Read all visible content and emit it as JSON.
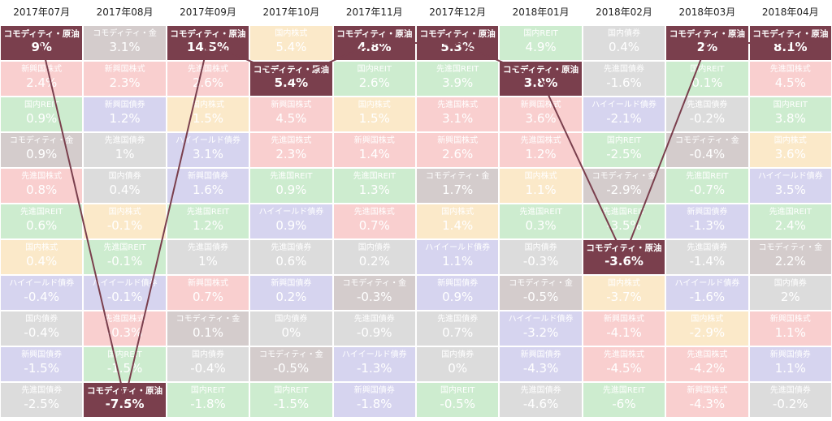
{
  "chart_data": {
    "type": "table",
    "months": [
      "2017年07月",
      "2017年08月",
      "2017年09月",
      "2017年10月",
      "2017年11月",
      "2017年12月",
      "2018年01月",
      "2018年02月",
      "2018年03月",
      "2018年04月"
    ],
    "highlight": "コモディティ・原油",
    "highlight_color": "#7a3f4d",
    "asset_colors": {
      "コモディティ・原油": "#7a3f4d",
      "コモディティ・金": "#d4cccc",
      "国内株式": "#fbe9c9",
      "国内REIT": "#cdeccf",
      "国内債券": "#dcdcdc",
      "新興国株式": "#f9cfcf",
      "先進国株式": "#f9cfcf",
      "先進国REIT": "#cdeccf",
      "ハイイールド債券": "#d6d4ef",
      "新興国債券": "#d6d4ef",
      "先進国債券": "#dcdcdc"
    },
    "columns": [
      [
        {
          "name": "コモディティ・原油",
          "value": "9%"
        },
        {
          "name": "新興国株式",
          "value": "2.4%"
        },
        {
          "name": "国内REIT",
          "value": "0.9%"
        },
        {
          "name": "コモディティ・金",
          "value": "0.9%"
        },
        {
          "name": "先進国株式",
          "value": "0.8%"
        },
        {
          "name": "先進国REIT",
          "value": "0.6%"
        },
        {
          "name": "国内株式",
          "value": "0.4%"
        },
        {
          "name": "ハイイールド債券",
          "value": "-0.4%"
        },
        {
          "name": "国内債券",
          "value": "-0.4%"
        },
        {
          "name": "新興国債券",
          "value": "-1.5%"
        },
        {
          "name": "先進国債券",
          "value": "-2.5%"
        }
      ],
      [
        {
          "name": "コモディティ・金",
          "value": "3.1%"
        },
        {
          "name": "新興国株式",
          "value": "2.3%"
        },
        {
          "name": "新興国債券",
          "value": "1.2%"
        },
        {
          "name": "先進国債券",
          "value": "1%"
        },
        {
          "name": "国内債券",
          "value": "0.4%"
        },
        {
          "name": "国内株式",
          "value": "-0.1%"
        },
        {
          "name": "先進国REIT",
          "value": "-0.1%"
        },
        {
          "name": "ハイイールド債券",
          "value": "-0.1%"
        },
        {
          "name": "先進国株式",
          "value": "-0.3%"
        },
        {
          "name": "国内REIT",
          "value": "-1.5%"
        },
        {
          "name": "コモディティ・原油",
          "value": "-7.5%"
        }
      ],
      [
        {
          "name": "コモディティ・原油",
          "value": "14.5%"
        },
        {
          "name": "先進国株式",
          "value": "2.6%"
        },
        {
          "name": "国内株式",
          "value": "1.5%"
        },
        {
          "name": "ハイイールド債券",
          "value": "3.1%"
        },
        {
          "name": "新興国債券",
          "value": "1.6%"
        },
        {
          "name": "先進国REIT",
          "value": "1.2%"
        },
        {
          "name": "先進国債券",
          "value": "1%"
        },
        {
          "name": "新興国株式",
          "value": "0.7%"
        },
        {
          "name": "コモディティ・金",
          "value": "0.1%"
        },
        {
          "name": "国内債券",
          "value": "-0.4%"
        },
        {
          "name": "国内REIT",
          "value": "-1.8%"
        }
      ],
      [
        {
          "name": "国内株式",
          "value": "5.4%"
        },
        {
          "name": "コモディティ・原油",
          "value": "5.4%"
        },
        {
          "name": "新興国株式",
          "value": "4.5%"
        },
        {
          "name": "先進国株式",
          "value": "2.3%"
        },
        {
          "name": "先進国REIT",
          "value": "0.9%"
        },
        {
          "name": "ハイイールド債券",
          "value": "0.9%"
        },
        {
          "name": "先進国債券",
          "value": "0.6%"
        },
        {
          "name": "新興国債券",
          "value": "0.2%"
        },
        {
          "name": "国内債券",
          "value": "0%"
        },
        {
          "name": "コモディティ・金",
          "value": "-0.5%"
        },
        {
          "name": "国内REIT",
          "value": "-1.5%"
        }
      ],
      [
        {
          "name": "コモディティ・原油",
          "value": "4.8%"
        },
        {
          "name": "国内REIT",
          "value": "2.6%"
        },
        {
          "name": "国内株式",
          "value": "1.5%"
        },
        {
          "name": "新興国株式",
          "value": "1.4%"
        },
        {
          "name": "先進国REIT",
          "value": "1.3%"
        },
        {
          "name": "先進国株式",
          "value": "0.7%"
        },
        {
          "name": "国内債券",
          "value": "0.2%"
        },
        {
          "name": "コモディティ・金",
          "value": "-0.3%"
        },
        {
          "name": "先進国債券",
          "value": "-0.9%"
        },
        {
          "name": "ハイイールド債券",
          "value": "-1.3%"
        },
        {
          "name": "新興国債券",
          "value": "-1.8%"
        }
      ],
      [
        {
          "name": "コモディティ・原油",
          "value": "5.3%"
        },
        {
          "name": "先進国REIT",
          "value": "3.9%"
        },
        {
          "name": "先進国株式",
          "value": "3.1%"
        },
        {
          "name": "新興国株式",
          "value": "2.6%"
        },
        {
          "name": "コモディティ・金",
          "value": "1.7%"
        },
        {
          "name": "国内株式",
          "value": "1.4%"
        },
        {
          "name": "ハイイールド債券",
          "value": "1.1%"
        },
        {
          "name": "新興国債券",
          "value": "0.9%"
        },
        {
          "name": "先進国債券",
          "value": "0.7%"
        },
        {
          "name": "国内債券",
          "value": "0%"
        },
        {
          "name": "国内REIT",
          "value": "-0.5%"
        }
      ],
      [
        {
          "name": "国内REIT",
          "value": "4.9%"
        },
        {
          "name": "コモディティ・原油",
          "value": "3.8%"
        },
        {
          "name": "新興国株式",
          "value": "3.6%"
        },
        {
          "name": "先進国株式",
          "value": "1.2%"
        },
        {
          "name": "国内株式",
          "value": "1.1%"
        },
        {
          "name": "先進国REIT",
          "value": "0.3%"
        },
        {
          "name": "国内債券",
          "value": "-0.3%"
        },
        {
          "name": "コモディティ・金",
          "value": "-0.5%"
        },
        {
          "name": "ハイイールド債券",
          "value": "-3.2%"
        },
        {
          "name": "新興国債券",
          "value": "-4.3%"
        },
        {
          "name": "先進国債券",
          "value": "-4.6%"
        }
      ],
      [
        {
          "name": "国内債券",
          "value": "0.4%"
        },
        {
          "name": "先進国債券",
          "value": "-1.6%"
        },
        {
          "name": "ハイイールド債券",
          "value": "-2.1%"
        },
        {
          "name": "国内REIT",
          "value": "-2.5%"
        },
        {
          "name": "コモディティ・金",
          "value": "-2.9%"
        },
        {
          "name": "先進国REIT",
          "value": "-3.5%"
        },
        {
          "name": "コモディティ・原油",
          "value": "-3.6%"
        },
        {
          "name": "国内株式",
          "value": "-3.7%"
        },
        {
          "name": "新興国株式",
          "value": "-4.1%"
        },
        {
          "name": "先進国株式",
          "value": "-4.5%"
        },
        {
          "name": "先進国REIT",
          "value": "-6%"
        }
      ],
      [
        {
          "name": "コモディティ・原油",
          "value": "2%"
        },
        {
          "name": "国内REIT",
          "value": "0.1%"
        },
        {
          "name": "先進国債券",
          "value": "-0.2%"
        },
        {
          "name": "コモディティ・金",
          "value": "-0.4%"
        },
        {
          "name": "先進国REIT",
          "value": "-0.7%"
        },
        {
          "name": "新興国債券",
          "value": "-1.3%"
        },
        {
          "name": "先進国債券",
          "value": "-1.4%"
        },
        {
          "name": "ハイイールド債券",
          "value": "-1.6%"
        },
        {
          "name": "国内株式",
          "value": "-2.9%"
        },
        {
          "name": "先進国株式",
          "value": "-4.2%"
        },
        {
          "name": "新興国株式",
          "value": "-4.3%"
        }
      ],
      [
        {
          "name": "コモディティ・原油",
          "value": "8.1%"
        },
        {
          "name": "先進国株式",
          "value": "4.5%"
        },
        {
          "name": "国内REIT",
          "value": "3.8%"
        },
        {
          "name": "国内株式",
          "value": "3.6%"
        },
        {
          "name": "ハイイールド債券",
          "value": "3.5%"
        },
        {
          "name": "先進国REIT",
          "value": "2.4%"
        },
        {
          "name": "コモディティ・金",
          "value": "2.2%"
        },
        {
          "name": "国内債券",
          "value": "2%"
        },
        {
          "name": "新興国株式",
          "value": "1.1%"
        },
        {
          "name": "新興国債券",
          "value": "1.1%"
        },
        {
          "name": "先進国債券",
          "value": "-0.2%"
        }
      ]
    ]
  }
}
